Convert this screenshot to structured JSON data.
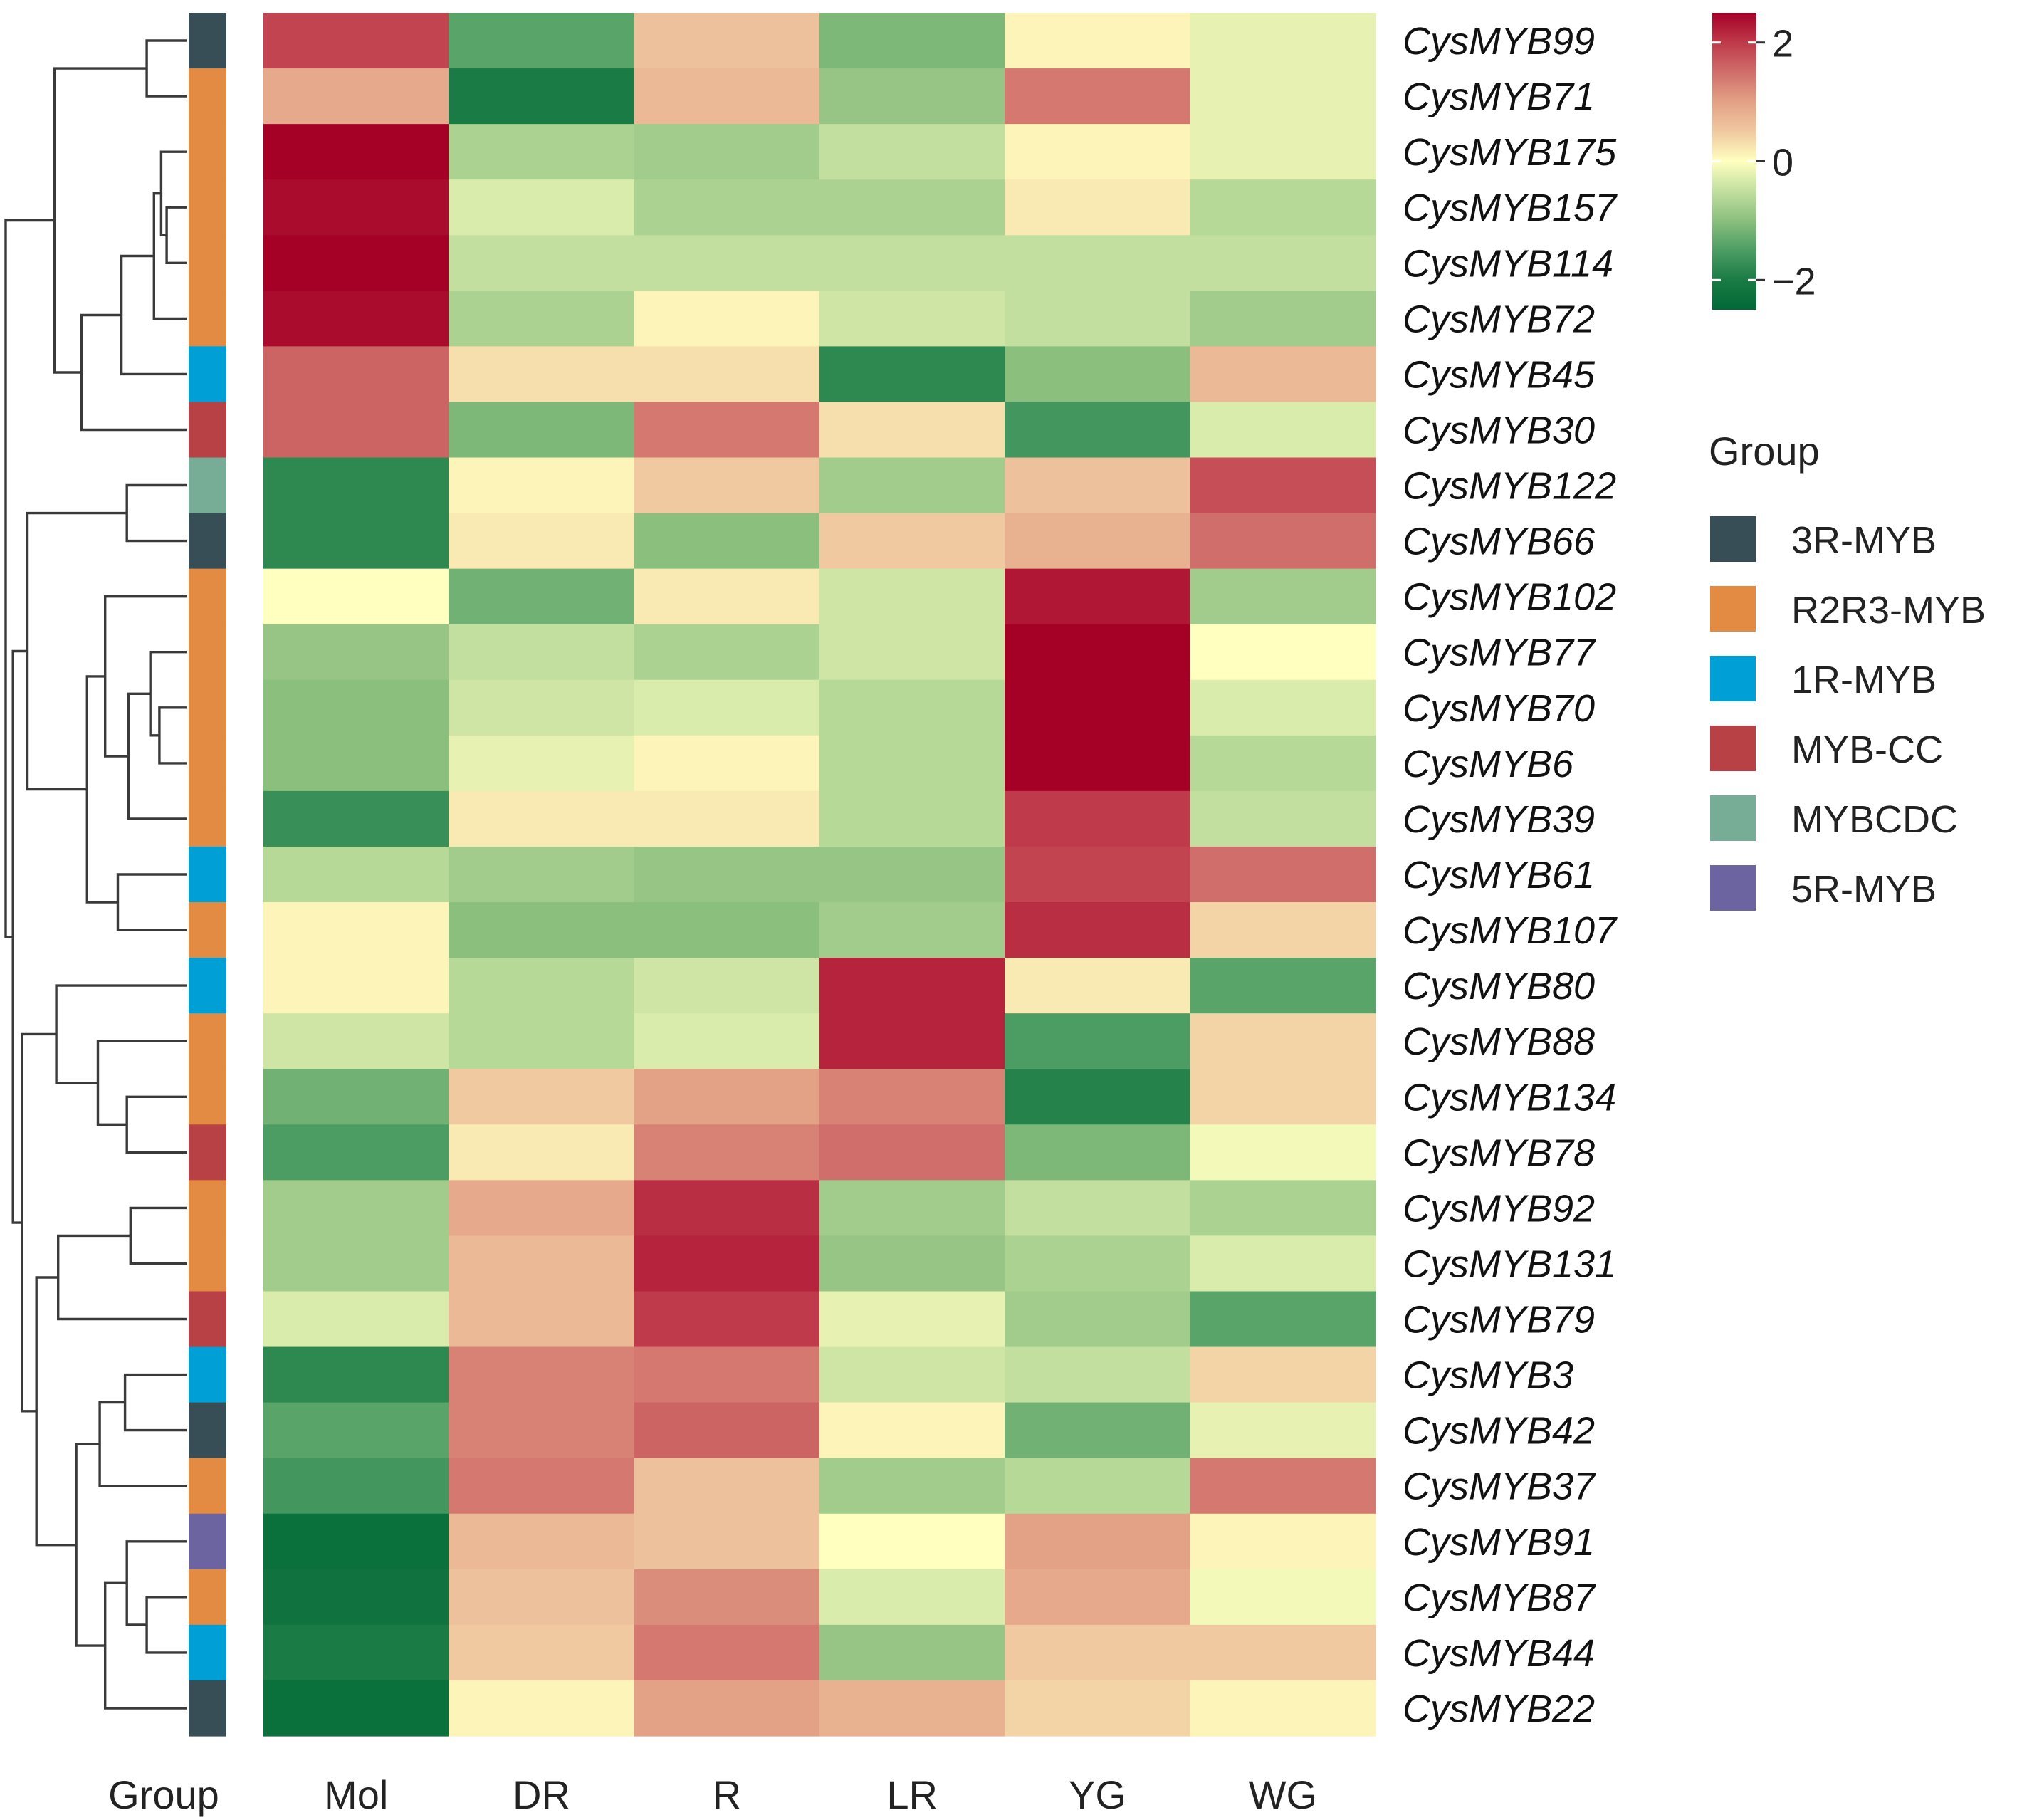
{
  "chart_data": {
    "type": "heatmap",
    "title": "",
    "row_group_header": "Group",
    "columns": [
      "Mol",
      "DR",
      "R",
      "LR",
      "YG",
      "WG"
    ],
    "rows": [
      {
        "gene": "CysMYB99",
        "group": "3R-MYB",
        "values": [
          1.9,
          -1.4,
          0.6,
          -1.1,
          0.1,
          -0.2
        ]
      },
      {
        "gene": "CysMYB71",
        "group": "R2R3-MYB",
        "values": [
          0.9,
          -2.0,
          0.7,
          -0.9,
          1.4,
          -0.2
        ]
      },
      {
        "gene": "CysMYB175",
        "group": "R2R3-MYB",
        "values": [
          2.5,
          -0.7,
          -0.8,
          -0.5,
          0.1,
          -0.2
        ]
      },
      {
        "gene": "CysMYB157",
        "group": "R2R3-MYB",
        "values": [
          2.4,
          -0.3,
          -0.7,
          -0.7,
          0.2,
          -0.6
        ]
      },
      {
        "gene": "CysMYB114",
        "group": "R2R3-MYB",
        "values": [
          2.5,
          -0.5,
          -0.5,
          -0.5,
          -0.5,
          -0.5
        ]
      },
      {
        "gene": "CysMYB72",
        "group": "R2R3-MYB",
        "values": [
          2.4,
          -0.7,
          0.1,
          -0.4,
          -0.5,
          -0.8
        ]
      },
      {
        "gene": "CysMYB45",
        "group": "1R-MYB",
        "values": [
          1.6,
          0.3,
          0.3,
          -1.8,
          -1.0,
          0.7
        ]
      },
      {
        "gene": "CysMYB30",
        "group": "MYB-CC",
        "values": [
          1.6,
          -1.1,
          1.4,
          0.3,
          -1.6,
          -0.3
        ]
      },
      {
        "gene": "CysMYB122",
        "group": "MYBCDC",
        "values": [
          -1.8,
          0.1,
          0.5,
          -0.8,
          0.6,
          1.8
        ]
      },
      {
        "gene": "CysMYB66",
        "group": "3R-MYB",
        "values": [
          -1.8,
          0.2,
          -1.0,
          0.5,
          0.8,
          1.5
        ]
      },
      {
        "gene": "CysMYB102",
        "group": "R2R3-MYB",
        "values": [
          0.0,
          -1.2,
          0.2,
          -0.4,
          2.3,
          -0.8
        ]
      },
      {
        "gene": "CysMYB77",
        "group": "R2R3-MYB",
        "values": [
          -0.9,
          -0.5,
          -0.7,
          -0.4,
          2.5,
          0.0
        ]
      },
      {
        "gene": "CysMYB70",
        "group": "R2R3-MYB",
        "values": [
          -1.0,
          -0.4,
          -0.3,
          -0.6,
          2.5,
          -0.3
        ]
      },
      {
        "gene": "CysMYB6",
        "group": "R2R3-MYB",
        "values": [
          -1.0,
          -0.2,
          0.1,
          -0.6,
          2.5,
          -0.6
        ]
      },
      {
        "gene": "CysMYB39",
        "group": "R2R3-MYB",
        "values": [
          -1.7,
          0.2,
          0.2,
          -0.6,
          2.0,
          -0.5
        ]
      },
      {
        "gene": "CysMYB61",
        "group": "1R-MYB",
        "values": [
          -0.6,
          -0.8,
          -0.9,
          -0.9,
          1.9,
          1.5
        ]
      },
      {
        "gene": "CysMYB107",
        "group": "R2R3-MYB",
        "values": [
          0.1,
          -1.0,
          -1.0,
          -0.8,
          2.1,
          0.4
        ]
      },
      {
        "gene": "CysMYB80",
        "group": "1R-MYB",
        "values": [
          0.1,
          -0.6,
          -0.4,
          2.2,
          0.2,
          -1.4
        ]
      },
      {
        "gene": "CysMYB88",
        "group": "R2R3-MYB",
        "values": [
          -0.4,
          -0.6,
          -0.3,
          2.2,
          -1.5,
          0.4
        ]
      },
      {
        "gene": "CysMYB134",
        "group": "R2R3-MYB",
        "values": [
          -1.2,
          0.5,
          1.0,
          1.3,
          -1.9,
          0.4
        ]
      },
      {
        "gene": "CysMYB78",
        "group": "MYB-CC",
        "values": [
          -1.5,
          0.2,
          1.3,
          1.5,
          -1.1,
          -0.1
        ]
      },
      {
        "gene": "CysMYB92",
        "group": "R2R3-MYB",
        "values": [
          -0.8,
          0.9,
          2.1,
          -0.8,
          -0.5,
          -0.7
        ]
      },
      {
        "gene": "CysMYB131",
        "group": "R2R3-MYB",
        "values": [
          -0.8,
          0.7,
          2.2,
          -0.9,
          -0.7,
          -0.3
        ]
      },
      {
        "gene": "CysMYB79",
        "group": "MYB-CC",
        "values": [
          -0.3,
          0.7,
          2.0,
          -0.2,
          -0.8,
          -1.4
        ]
      },
      {
        "gene": "CysMYB3",
        "group": "1R-MYB",
        "values": [
          -1.8,
          1.3,
          1.4,
          -0.4,
          -0.5,
          0.4
        ]
      },
      {
        "gene": "CysMYB42",
        "group": "3R-MYB",
        "values": [
          -1.4,
          1.3,
          1.6,
          0.1,
          -1.2,
          -0.2
        ]
      },
      {
        "gene": "CysMYB37",
        "group": "R2R3-MYB",
        "values": [
          -1.6,
          1.4,
          0.6,
          -0.8,
          -0.6,
          1.4
        ]
      },
      {
        "gene": "CysMYB91",
        "group": "5R-MYB",
        "values": [
          -2.3,
          0.7,
          0.6,
          0.0,
          1.0,
          0.1
        ]
      },
      {
        "gene": "CysMYB87",
        "group": "R2R3-MYB",
        "values": [
          -2.2,
          0.6,
          1.2,
          -0.3,
          0.9,
          -0.1
        ]
      },
      {
        "gene": "CysMYB44",
        "group": "1R-MYB",
        "values": [
          -2.0,
          0.5,
          1.4,
          -0.9,
          0.5,
          0.5
        ]
      },
      {
        "gene": "CysMYB22",
        "group": "3R-MYB",
        "values": [
          -2.3,
          0.1,
          1.0,
          0.8,
          0.4,
          0.1
        ]
      }
    ],
    "dendrogram": {
      "merges": [
        {
          "a": 3,
          "b": 4,
          "height": 0.11
        },
        {
          "a": 2,
          "b": 3,
          "height": 0.14
        },
        {
          "a": 2,
          "b": 5,
          "height": 0.18
        },
        {
          "a": 0,
          "b": 1,
          "height": 0.22
        },
        {
          "a": 2,
          "b": 6,
          "height": 0.36
        },
        {
          "a": 2,
          "b": 7,
          "height": 0.58
        },
        {
          "a": 0,
          "b": 2,
          "height": 0.73
        },
        {
          "a": 8,
          "b": 9,
          "height": 0.33
        },
        {
          "a": 12,
          "b": 13,
          "height": 0.15
        },
        {
          "a": 11,
          "b": 12,
          "height": 0.2
        },
        {
          "a": 11,
          "b": 14,
          "height": 0.32
        },
        {
          "a": 10,
          "b": 11,
          "height": 0.45
        },
        {
          "a": 15,
          "b": 16,
          "height": 0.38
        },
        {
          "a": 10,
          "b": 15,
          "height": 0.55
        },
        {
          "a": 8,
          "b": 10,
          "height": 0.88
        },
        {
          "a": 19,
          "b": 20,
          "height": 0.33
        },
        {
          "a": 18,
          "b": 19,
          "height": 0.49
        },
        {
          "a": 17,
          "b": 18,
          "height": 0.72
        },
        {
          "a": 21,
          "b": 22,
          "height": 0.31
        },
        {
          "a": 21,
          "b": 23,
          "height": 0.71
        },
        {
          "a": 24,
          "b": 25,
          "height": 0.34
        },
        {
          "a": 24,
          "b": 26,
          "height": 0.48
        },
        {
          "a": 28,
          "b": 29,
          "height": 0.22
        },
        {
          "a": 27,
          "b": 28,
          "height": 0.33
        },
        {
          "a": 27,
          "b": 30,
          "height": 0.45
        },
        {
          "a": 24,
          "b": 27,
          "height": 0.61
        },
        {
          "a": 21,
          "b": 24,
          "height": 0.83
        },
        {
          "a": 17,
          "b": 21,
          "height": 0.91
        },
        {
          "a": 8,
          "b": 17,
          "height": 0.96
        },
        {
          "a": 0,
          "b": 8,
          "height": 1.0
        }
      ]
    },
    "color_scale": {
      "min": -2,
      "max": 2,
      "low_color": "#006837",
      "mid_color": "#FFFFBF",
      "high_color": "#A50026",
      "stops": [
        {
          "value": -2.5,
          "color": "#006837"
        },
        {
          "value": -2.0,
          "color": "#1A7B44"
        },
        {
          "value": -1.5,
          "color": "#4C9D64"
        },
        {
          "value": -1.0,
          "color": "#8BBF7E"
        },
        {
          "value": -0.5,
          "color": "#C2DF9F"
        },
        {
          "value": 0.0,
          "color": "#FFFFBF"
        },
        {
          "value": 0.5,
          "color": "#F0C9A0"
        },
        {
          "value": 1.0,
          "color": "#E3A186"
        },
        {
          "value": 1.5,
          "color": "#D06E6B"
        },
        {
          "value": 2.0,
          "color": "#BF3A4A"
        },
        {
          "value": 2.5,
          "color": "#A50026"
        }
      ],
      "ticks": [
        "2",
        "0",
        "−2"
      ]
    },
    "legend": {
      "title": "Group",
      "placement": "right",
      "items": [
        {
          "label": "3R-MYB",
          "color": "#384E57"
        },
        {
          "label": "R2R3-MYB",
          "color": "#E38A43"
        },
        {
          "label": "1R-MYB",
          "color": "#009FD6"
        },
        {
          "label": "MYB-CC",
          "color": "#B84145"
        },
        {
          "label": "MYBCDC",
          "color": "#77AD97"
        },
        {
          "label": "5R-MYB",
          "color": "#6B64A0"
        }
      ]
    }
  }
}
